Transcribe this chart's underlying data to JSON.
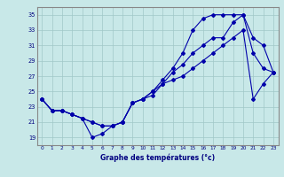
{
  "xlabel": "Graphe des températures (°c)",
  "xlim": [
    -0.5,
    23.5
  ],
  "ylim": [
    18,
    36
  ],
  "yticks": [
    19,
    21,
    23,
    25,
    27,
    29,
    31,
    33,
    35
  ],
  "xticks": [
    0,
    1,
    2,
    3,
    4,
    5,
    6,
    7,
    8,
    9,
    10,
    11,
    12,
    13,
    14,
    15,
    16,
    17,
    18,
    19,
    20,
    21,
    22,
    23
  ],
  "background_color": "#c8e8e8",
  "grid_color": "#a0c8c8",
  "line_color": "#0000aa",
  "line1_x": [
    0,
    1,
    2,
    3,
    4,
    5,
    6,
    7,
    8,
    9,
    10,
    11,
    12,
    13,
    14,
    15,
    16,
    17,
    18,
    19,
    20,
    21,
    22,
    23
  ],
  "line1_y": [
    24,
    22.5,
    22.5,
    22,
    21.5,
    21,
    20.5,
    20.5,
    21,
    23.5,
    24,
    25,
    26,
    27.5,
    28.5,
    30,
    31,
    32,
    32,
    34,
    35,
    30,
    28,
    27.5
  ],
  "line2_x": [
    0,
    1,
    2,
    3,
    4,
    5,
    6,
    7,
    8,
    9,
    10,
    11,
    12,
    13,
    14,
    15,
    16,
    17,
    18,
    19,
    20,
    21,
    22,
    23
  ],
  "line2_y": [
    24,
    22.5,
    22.5,
    22,
    21.5,
    19,
    19.5,
    20.5,
    21,
    23.5,
    24,
    25,
    26.5,
    28,
    30,
    33,
    34.5,
    35,
    35,
    35,
    35,
    32,
    31,
    27.5
  ],
  "line3_x": [
    0,
    1,
    2,
    3,
    4,
    5,
    6,
    7,
    8,
    9,
    10,
    11,
    12,
    13,
    14,
    15,
    16,
    17,
    18,
    19,
    20,
    21,
    22,
    23
  ],
  "line3_y": [
    24,
    22.5,
    22.5,
    22,
    21.5,
    21,
    20.5,
    20.5,
    21,
    23.5,
    24,
    24.5,
    26,
    26.5,
    27,
    28,
    29,
    30,
    31,
    32,
    33,
    24,
    26,
    27.5
  ]
}
